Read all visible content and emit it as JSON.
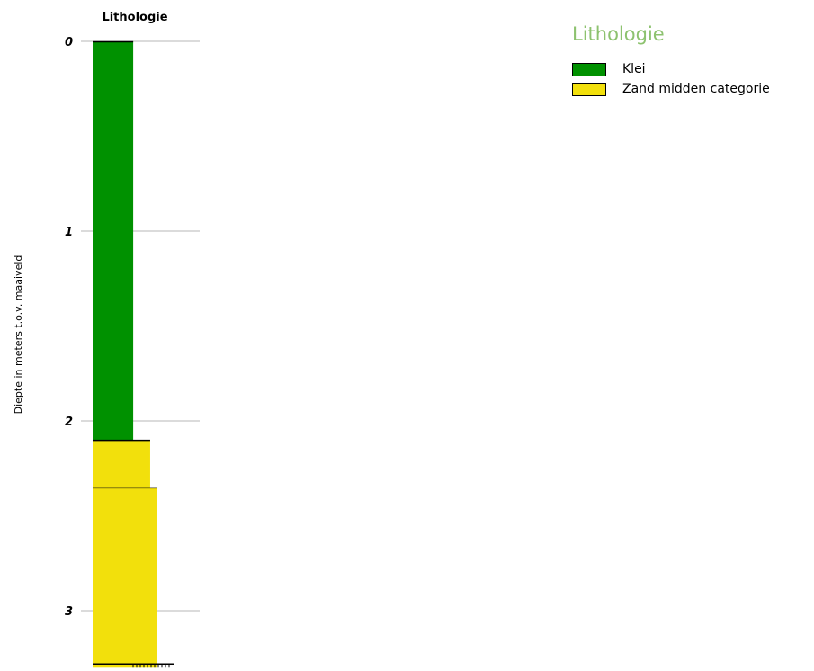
{
  "chart_data": {
    "type": "bar",
    "title": "Lithologie",
    "ylabel": "Diepte in meters t.o.v. maaiveld",
    "ylim": [
      0,
      3.3
    ],
    "y_ticks": [
      "0",
      "1",
      "2",
      "3"
    ],
    "grid": true,
    "layers": [
      {
        "top": 0.0,
        "bottom": 2.1,
        "lithology": "Klei",
        "relative_width": 0.55
      },
      {
        "top": 2.1,
        "bottom": 2.35,
        "lithology": "Zand midden categorie",
        "relative_width": 0.78
      },
      {
        "top": 2.35,
        "bottom": 3.3,
        "lithology": "Zand midden categorie",
        "relative_width": 0.87
      }
    ]
  },
  "legend": {
    "title": "Lithologie",
    "placement": "top-right",
    "items": [
      {
        "label": "Klei",
        "color": "#009100"
      },
      {
        "label": "Zand midden categorie",
        "color": "#f2e00c"
      }
    ]
  }
}
